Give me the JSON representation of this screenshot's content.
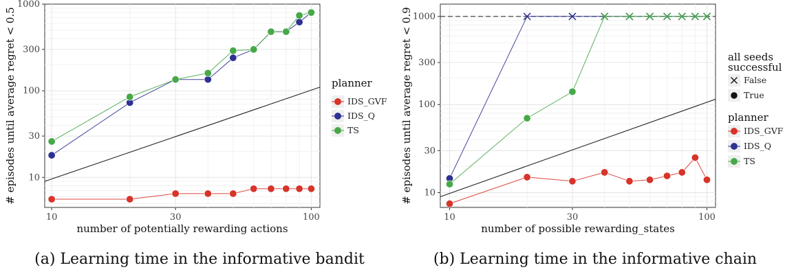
{
  "chart_data": [
    {
      "type": "scatter",
      "xscale": "log",
      "yscale": "log",
      "xlabel": "number of potentially rewarding actions",
      "ylabel": "# episodes until average regret < 0.5",
      "xticks": [
        10,
        30,
        100
      ],
      "yticks": [
        10,
        30,
        100,
        300,
        1000
      ],
      "xlim": [
        9.4,
        108
      ],
      "ylim": [
        4.5,
        1000
      ],
      "legend_title": "planner",
      "legend_position": "right",
      "caption": "(a) Learning time in the informative bandit",
      "reference_line": {
        "x": [
          9.4,
          108
        ],
        "y": [
          9,
          110
        ]
      },
      "series": [
        {
          "name": "IDS_GVF",
          "color": "#d7342a",
          "x": [
            10,
            20,
            30,
            40,
            50,
            60,
            70,
            80,
            90,
            100
          ],
          "y": [
            5.6,
            5.6,
            6.5,
            6.5,
            6.5,
            7.4,
            7.4,
            7.4,
            7.4,
            7.4
          ]
        },
        {
          "name": "IDS_Q",
          "color": "#2e3192",
          "x": [
            10,
            20,
            30,
            40,
            50,
            60,
            70,
            80,
            90,
            100
          ],
          "y": [
            18,
            73,
            135,
            135,
            240,
            300,
            480,
            480,
            620,
            800
          ]
        },
        {
          "name": "TS",
          "color": "#47a84a",
          "x": [
            10,
            20,
            30,
            40,
            50,
            60,
            70,
            80,
            90,
            100
          ],
          "y": [
            26,
            85,
            135,
            160,
            290,
            300,
            480,
            480,
            740,
            800
          ]
        }
      ]
    },
    {
      "type": "scatter",
      "xscale": "log",
      "yscale": "log",
      "xlabel": "number of possible rewarding_states",
      "ylabel": "# episodes until average regret < 0.9",
      "xticks": [
        10,
        30,
        100
      ],
      "yticks": [
        10,
        30,
        100,
        300,
        1000
      ],
      "xlim": [
        9.2,
        108
      ],
      "ylim": [
        6.8,
        1380
      ],
      "reference_hline": 1000,
      "legend": [
        {
          "title": "all seeds\nsuccessful",
          "entries": [
            "False",
            "True"
          ]
        },
        {
          "title": "planner",
          "entries": [
            "IDS_GVF",
            "IDS_Q",
            "TS"
          ]
        }
      ],
      "legend_position": "right",
      "caption": "(b) Learning time in the informative chain",
      "reference_line": {
        "x": [
          9.2,
          108
        ],
        "y": [
          9,
          115
        ]
      },
      "series": [
        {
          "name": "IDS_GVF",
          "color": "#d7342a",
          "x": [
            10,
            20,
            30,
            40,
            50,
            60,
            70,
            80,
            90,
            100
          ],
          "y": [
            7.5,
            15,
            13.5,
            17,
            13.5,
            14,
            15.5,
            17,
            25,
            14
          ],
          "success": [
            true,
            true,
            true,
            true,
            true,
            true,
            true,
            true,
            true,
            true
          ]
        },
        {
          "name": "IDS_Q",
          "color": "#2e3192",
          "x": [
            10,
            20,
            30,
            40,
            50,
            60,
            70,
            80,
            90,
            100
          ],
          "y": [
            14.5,
            1000,
            1000,
            1000,
            1000,
            1000,
            1000,
            1000,
            1000,
            1000
          ],
          "success": [
            true,
            false,
            false,
            false,
            false,
            false,
            false,
            false,
            false,
            false
          ]
        },
        {
          "name": "TS",
          "color": "#47a84a",
          "x": [
            10,
            20,
            30,
            40,
            50,
            60,
            70,
            80,
            90,
            100
          ],
          "y": [
            12.5,
            70,
            140,
            1000,
            1000,
            1000,
            1000,
            1000,
            1000,
            1000
          ],
          "success": [
            true,
            true,
            true,
            false,
            false,
            false,
            false,
            false,
            false,
            false
          ]
        }
      ]
    }
  ]
}
